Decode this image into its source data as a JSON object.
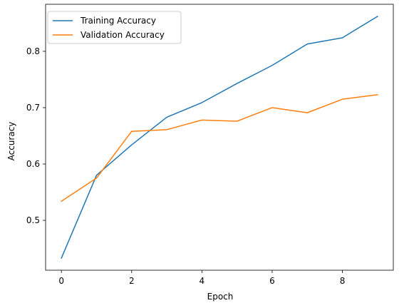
{
  "chart_data": {
    "type": "line",
    "title": "",
    "xlabel": "Epoch",
    "ylabel": "Accuracy",
    "xlim": [
      -0.45,
      9.45
    ],
    "ylim": [
      0.4115,
      0.8835
    ],
    "x": [
      0,
      1,
      2,
      3,
      4,
      5,
      6,
      7,
      8,
      9
    ],
    "x_ticks": [
      0,
      2,
      4,
      6,
      8
    ],
    "y_ticks": [
      0.5,
      0.6,
      0.7,
      0.8
    ],
    "x_tick_labels": [
      "0",
      "2",
      "4",
      "6",
      "8"
    ],
    "y_tick_labels": [
      "0.5",
      "0.6",
      "0.7",
      "0.8"
    ],
    "grid": false,
    "legend_position": "top-left",
    "series": [
      {
        "name": "Training Accuracy",
        "color": "#1f77b4",
        "values": [
          0.433,
          0.58,
          0.634,
          0.683,
          0.709,
          0.743,
          0.775,
          0.813,
          0.824,
          0.862
        ]
      },
      {
        "name": "Validation Accuracy",
        "color": "#ff7f0e",
        "values": [
          0.534,
          0.575,
          0.658,
          0.661,
          0.678,
          0.676,
          0.7,
          0.691,
          0.715,
          0.723
        ]
      }
    ]
  }
}
